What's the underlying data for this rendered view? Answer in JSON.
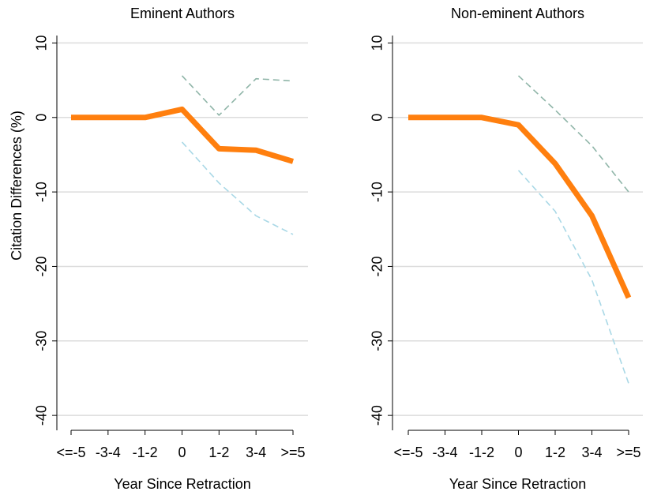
{
  "chart_data": [
    {
      "type": "line",
      "title": "Eminent Authors",
      "xlabel": "Year Since Retraction",
      "ylabel": "Citation Differences (%)",
      "categories": [
        "<=-5",
        "-3-4",
        "-1-2",
        "0",
        "1-2",
        "3-4",
        ">=5"
      ],
      "series": [
        {
          "color": "#ff7f0e",
          "style": "solid",
          "values": [
            0,
            0,
            0,
            1.1,
            -4.2,
            -4.4,
            -5.9
          ]
        },
        {
          "color": "#8fb5a8",
          "style": "dashed",
          "values": [
            null,
            null,
            null,
            5.6,
            0.3,
            5.2,
            4.9
          ]
        },
        {
          "color": "#a9d8e6",
          "style": "dashed",
          "values": [
            null,
            null,
            null,
            -3.3,
            -8.8,
            -13.2,
            -15.7
          ]
        }
      ],
      "ylim": [
        -42,
        11
      ],
      "yticks": [
        -40,
        -30,
        -20,
        -10,
        0,
        10
      ],
      "grid": true
    },
    {
      "type": "line",
      "title": "Non-eminent Authors",
      "xlabel": "Year Since Retraction",
      "categories": [
        "<=-5",
        "-3-4",
        "-1-2",
        "0",
        "1-2",
        "3-4",
        ">=5"
      ],
      "series": [
        {
          "color": "#ff7f0e",
          "style": "solid",
          "values": [
            0,
            0,
            0,
            -1.0,
            -6.2,
            -13.2,
            -24.2
          ]
        },
        {
          "color": "#8fb5a8",
          "style": "dashed",
          "values": [
            null,
            null,
            null,
            5.6,
            1.0,
            -3.8,
            -10.0
          ]
        },
        {
          "color": "#a9d8e6",
          "style": "dashed",
          "values": [
            null,
            null,
            null,
            -7.1,
            -12.6,
            -21.8,
            -35.7
          ]
        }
      ],
      "ylim": [
        -42,
        11
      ],
      "yticks": [
        -40,
        -30,
        -20,
        -10,
        0,
        10
      ],
      "grid": true
    }
  ]
}
